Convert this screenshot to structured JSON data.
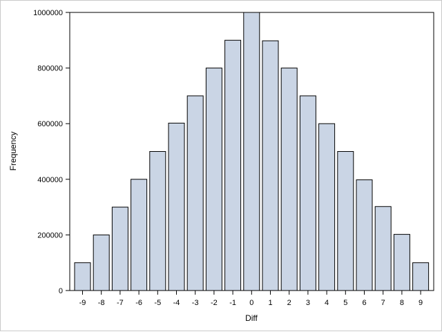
{
  "chart_data": {
    "type": "bar",
    "title": "",
    "xlabel": "Diff",
    "ylabel": "Frequency",
    "categories": [
      "-9",
      "-8",
      "-7",
      "-6",
      "-5",
      "-4",
      "-3",
      "-2",
      "-1",
      "0",
      "1",
      "2",
      "3",
      "4",
      "5",
      "6",
      "7",
      "8",
      "9"
    ],
    "values": [
      100000,
      200000,
      300000,
      400000,
      500000,
      602000,
      700000,
      800000,
      900000,
      1000000,
      898000,
      800000,
      700000,
      600000,
      500000,
      398000,
      302000,
      202000,
      100000
    ],
    "ylim": [
      0,
      1000000
    ],
    "yticks": [
      "0",
      "200000",
      "400000",
      "600000",
      "800000",
      "1000000"
    ],
    "grid": false,
    "legend": "none",
    "colors": {
      "bar_fill": "#CAD5E5",
      "bar_stroke": "#000000",
      "axis": "#000000"
    }
  }
}
